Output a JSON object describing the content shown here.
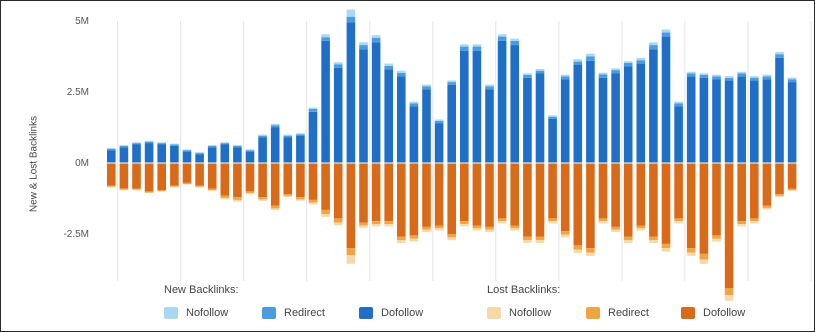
{
  "chart_data": {
    "type": "bar",
    "stacked": true,
    "ylabel": "New & Lost Backlinks",
    "ytick_labels": [
      "5M",
      "2.5M",
      "0M",
      "-2.5M"
    ],
    "ytick_values": [
      5000000,
      2500000,
      0,
      -2500000
    ],
    "ylim": [
      -3500000,
      5000000
    ],
    "vertical_gridlines": true,
    "x": [
      1,
      2,
      3,
      4,
      5,
      6,
      7,
      8,
      9,
      10,
      11,
      12,
      13,
      14,
      15,
      16,
      17,
      18,
      19,
      20,
      21,
      22,
      23,
      24,
      25,
      26,
      27,
      28,
      29,
      30,
      31,
      32,
      33,
      34,
      35,
      36,
      37,
      38,
      39,
      40,
      41,
      42,
      43,
      44,
      45,
      46,
      47,
      48,
      49,
      50,
      51,
      52,
      53,
      54,
      55,
      56
    ],
    "series": [
      {
        "name": "Dofollow",
        "group": "New Backlinks",
        "color": "#1f6fc6",
        "values": [
          450000,
          550000,
          650000,
          700000,
          650000,
          600000,
          400000,
          300000,
          550000,
          650000,
          550000,
          400000,
          900000,
          1250000,
          900000,
          950000,
          1800000,
          4300000,
          3350000,
          4950000,
          4000000,
          4250000,
          3300000,
          3050000,
          2000000,
          2600000,
          1400000,
          2750000,
          3950000,
          3950000,
          2600000,
          4300000,
          4150000,
          3000000,
          3150000,
          1550000,
          2950000,
          3450000,
          3600000,
          3000000,
          3150000,
          3400000,
          3500000,
          4000000,
          4450000,
          2000000,
          3050000,
          3000000,
          2950000,
          2900000,
          3050000,
          2900000,
          2950000,
          3700000,
          2850000,
          0
        ]
      },
      {
        "name": "Redirect",
        "group": "New Backlinks",
        "color": "#4a9be0",
        "values": [
          50000,
          50000,
          50000,
          50000,
          50000,
          50000,
          50000,
          50000,
          50000,
          50000,
          50000,
          50000,
          60000,
          80000,
          60000,
          60000,
          100000,
          130000,
          120000,
          200000,
          150000,
          150000,
          120000,
          120000,
          100000,
          100000,
          80000,
          100000,
          150000,
          150000,
          100000,
          150000,
          150000,
          100000,
          100000,
          80000,
          100000,
          120000,
          150000,
          120000,
          120000,
          120000,
          120000,
          150000,
          150000,
          100000,
          100000,
          100000,
          100000,
          100000,
          100000,
          100000,
          100000,
          130000,
          100000,
          0
        ]
      },
      {
        "name": "Nofollow",
        "group": "New Backlinks",
        "color": "#a9d8f5",
        "values": [
          30000,
          30000,
          30000,
          30000,
          30000,
          30000,
          30000,
          30000,
          30000,
          30000,
          30000,
          30000,
          40000,
          50000,
          40000,
          40000,
          50000,
          100000,
          80000,
          250000,
          100000,
          100000,
          80000,
          80000,
          60000,
          60000,
          50000,
          60000,
          80000,
          80000,
          60000,
          80000,
          80000,
          60000,
          60000,
          50000,
          60000,
          80000,
          100000,
          60000,
          60000,
          60000,
          80000,
          100000,
          100000,
          60000,
          60000,
          60000,
          60000,
          60000,
          60000,
          60000,
          60000,
          80000,
          60000,
          0
        ]
      },
      {
        "name": "Dofollow",
        "group": "Lost Backlinks",
        "color": "#d96a1a",
        "values": [
          -800000,
          -900000,
          -900000,
          -1000000,
          -950000,
          -800000,
          -700000,
          -800000,
          -900000,
          -1150000,
          -1200000,
          -1000000,
          -1200000,
          -1500000,
          -1100000,
          -1200000,
          -1300000,
          -1650000,
          -1950000,
          -3000000,
          -2100000,
          -2050000,
          -2050000,
          -2600000,
          -2550000,
          -2250000,
          -2200000,
          -2500000,
          -2050000,
          -2200000,
          -2250000,
          -1950000,
          -2200000,
          -2600000,
          -2600000,
          -1950000,
          -2400000,
          -2900000,
          -3000000,
          -1950000,
          -2250000,
          -2600000,
          -2200000,
          -2600000,
          -2850000,
          -1950000,
          -3000000,
          -3200000,
          -2550000,
          -4400000,
          -2050000,
          -1950000,
          -1500000,
          -1100000,
          -900000,
          0
        ]
      },
      {
        "name": "Redirect",
        "group": "Lost Backlinks",
        "color": "#f0a443",
        "values": [
          -40000,
          -40000,
          -40000,
          -40000,
          -40000,
          -40000,
          -40000,
          -40000,
          -50000,
          -80000,
          -100000,
          -60000,
          -80000,
          -100000,
          -60000,
          -80000,
          -100000,
          -150000,
          -150000,
          -250000,
          -100000,
          -100000,
          -100000,
          -120000,
          -120000,
          -100000,
          -100000,
          -120000,
          -100000,
          -100000,
          -100000,
          -100000,
          -100000,
          -120000,
          -120000,
          -100000,
          -120000,
          -150000,
          -150000,
          -100000,
          -100000,
          -120000,
          -100000,
          -120000,
          -150000,
          -100000,
          -150000,
          -200000,
          -120000,
          -250000,
          -100000,
          -100000,
          -80000,
          -60000,
          -50000,
          0
        ]
      },
      {
        "name": "Nofollow",
        "group": "Lost Backlinks",
        "color": "#f7d9a8",
        "values": [
          -20000,
          -20000,
          -20000,
          -20000,
          -20000,
          -20000,
          -20000,
          -20000,
          -30000,
          -50000,
          -60000,
          -40000,
          -50000,
          -60000,
          -40000,
          -50000,
          -60000,
          -100000,
          -100000,
          -300000,
          -80000,
          -80000,
          -80000,
          -100000,
          -100000,
          -80000,
          -80000,
          -100000,
          -80000,
          -80000,
          -80000,
          -80000,
          -80000,
          -100000,
          -100000,
          -80000,
          -100000,
          -120000,
          -120000,
          -80000,
          -80000,
          -100000,
          -80000,
          -100000,
          -120000,
          -80000,
          -120000,
          -150000,
          -100000,
          -200000,
          -80000,
          -80000,
          -60000,
          -40000,
          -30000,
          0
        ]
      }
    ],
    "legend": {
      "placement": "bottom",
      "groups": [
        {
          "title": "New Backlinks:",
          "items": [
            "Nofollow",
            "Redirect",
            "Dofollow"
          ]
        },
        {
          "title": "Lost Backlinks:",
          "items": [
            "Nofollow",
            "Redirect",
            "Dofollow"
          ]
        }
      ]
    }
  },
  "legend_colors": {
    "new": [
      "#a9d8f5",
      "#4a9be0",
      "#1f6fc6"
    ],
    "lost": [
      "#f7d9a8",
      "#f0a443",
      "#d96a1a"
    ]
  }
}
